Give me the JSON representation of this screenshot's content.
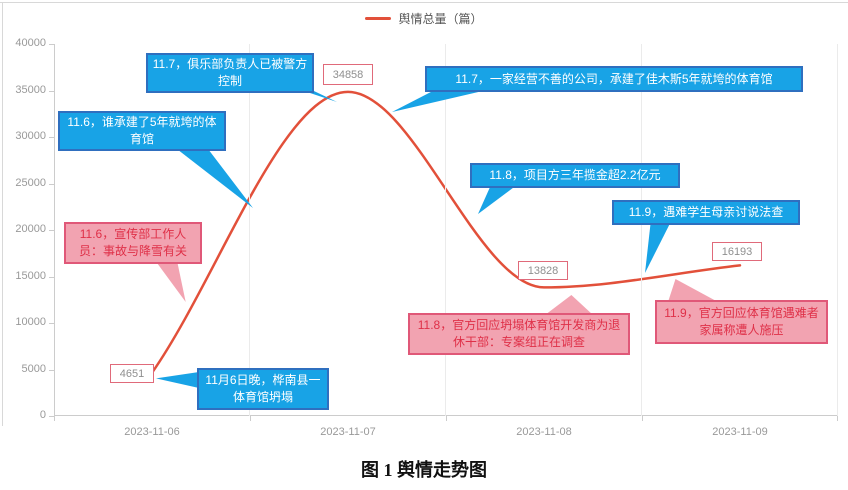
{
  "legend": {
    "series_label": "舆情总量（篇）"
  },
  "caption": "图 1 舆情走势图",
  "chart_data": {
    "type": "line",
    "x": [
      "2023-11-06",
      "2023-11-07",
      "2023-11-08",
      "2023-11-09"
    ],
    "series": [
      {
        "name": "舆情总量（篇）",
        "values": [
          4651,
          34858,
          13828,
          16193
        ]
      }
    ],
    "data_labels": [
      "4651",
      "34858",
      "13828",
      "16193"
    ],
    "ylim": [
      0,
      40000
    ],
    "yticks": [
      0,
      5000,
      10000,
      15000,
      20000,
      25000,
      30000,
      35000,
      40000
    ],
    "smooth": true,
    "grid": "vertical gridlines at category boundaries only",
    "legend_position": "top-center",
    "line_color": "#e2503a"
  },
  "colors": {
    "line": "#e2503a",
    "blue_callout_bg": "#18a3e6",
    "blue_callout_border": "#2f6fbf",
    "pink_callout_bg": "#f2a3b1",
    "pink_callout_border": "#e05878",
    "pink_callout_text": "#df3048",
    "axis_text": "#999999",
    "value_box_border": "#e06a7a"
  },
  "callouts": [
    {
      "type": "blue",
      "text": "11.7，俱乐部负责人已被警方控制"
    },
    {
      "type": "blue",
      "text": "11.6，谁承建了5年就垮的体育馆"
    },
    {
      "type": "blue",
      "text": "11.7，一家经营不善的公司，承建了佳木斯5年就垮的体育馆"
    },
    {
      "type": "blue",
      "text": "11.8，项目方三年揽金超2.2亿元"
    },
    {
      "type": "blue",
      "text": "11.9，遇难学生母亲讨说法查"
    },
    {
      "type": "blue",
      "text": "11月6日晚，桦南县一体育馆坍塌"
    },
    {
      "type": "pink",
      "text": "11.6，宣传部工作人员：事故与降雪有关"
    },
    {
      "type": "pink",
      "text": "11.8，官方回应坍塌体育馆开发商为退休干部：专案组正在调查"
    },
    {
      "type": "pink",
      "text": "11.9，官方回应体育馆遇难者家属称遭人施压"
    }
  ]
}
